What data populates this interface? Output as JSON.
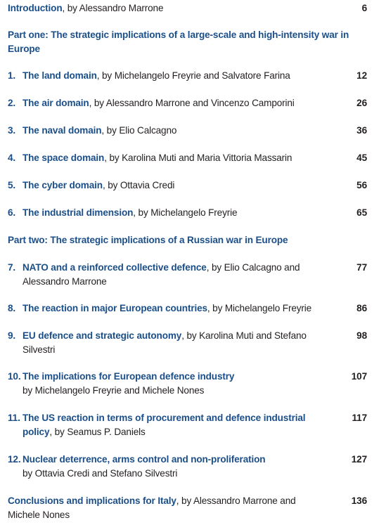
{
  "intro": {
    "title": "Introduction",
    "byline": ", by Alessandro Marrone",
    "page": 6
  },
  "part_one": {
    "heading": "Part one: The strategic implications of a large-scale and high-intensity war in Europe",
    "chapters": [
      {
        "number": "1.",
        "title": "The land domain",
        "byline": ", by Michelangelo Freyrie and Salvatore Farina",
        "page": 12
      },
      {
        "number": "2.",
        "title": "The air domain",
        "byline": ", by Alessandro Marrone and Vincenzo Camporini",
        "page": 26
      },
      {
        "number": "3.",
        "title": "The naval domain",
        "byline": ", by Elio Calcagno",
        "page": 36
      },
      {
        "number": "4.",
        "title": "The space domain",
        "byline": ", by Karolina Muti and Maria Vittoria Massarin",
        "page": 45
      },
      {
        "number": "5.",
        "title": "The cyber domain",
        "byline": ", by Ottavia Credi",
        "page": 56
      },
      {
        "number": "6.",
        "title": "The industrial dimension",
        "byline": ", by Michelangelo Freyrie",
        "page": 65
      }
    ]
  },
  "part_two": {
    "heading": "Part two: The strategic implications of a Russian war in Europe",
    "chapters": [
      {
        "number": "7.",
        "title": "NATO and a reinforced collective defence",
        "byline": ", by Elio Calcagno and Alessandro Marrone",
        "page": 77
      },
      {
        "number": "8.",
        "title": "The reaction in major European countries",
        "byline": ", by Michelangelo Freyrie",
        "page": 86
      },
      {
        "number": "9.",
        "title": "EU defence and strategic autonomy",
        "byline": ", by Karolina Muti and Stefano Silvestri",
        "page": 98
      },
      {
        "number": "10.",
        "title": "The implications for European defence industry",
        "byline": "by Michelangelo Freyrie and Michele Nones",
        "page": 107
      },
      {
        "number": "11.",
        "title": "The US reaction in terms of procurement and defence industrial policy",
        "byline": ", by Seamus P. Daniels",
        "page": 117
      },
      {
        "number": "12.",
        "title": "Nuclear deterrence, arms control and non-proliferation",
        "byline": "by Ottavia Credi and Stefano Silvestri",
        "page": 127
      }
    ]
  },
  "conclusions": {
    "title": "Conclusions and implications for Italy",
    "byline": ", by Alessandro Marrone and Michele Nones",
    "page": 136
  }
}
